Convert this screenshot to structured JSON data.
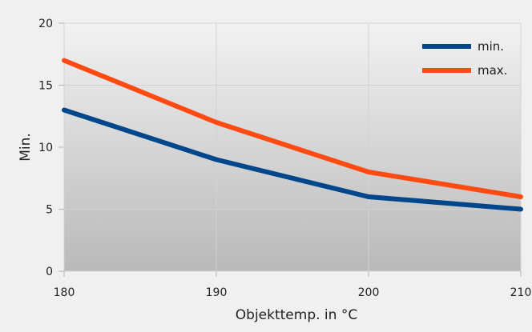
{
  "chart_data": {
    "type": "line",
    "title": "",
    "xlabel": "Objekttemp. in °C",
    "ylabel": "Min.",
    "x": [
      180,
      190,
      200,
      210
    ],
    "x_ticks": [
      "180",
      "190",
      "200",
      "210"
    ],
    "y_ticks": [
      "0",
      "5",
      "10",
      "15",
      "20"
    ],
    "ylim": [
      0,
      20
    ],
    "xlim": [
      180,
      210
    ],
    "grid": true,
    "legend": "top-right",
    "series": [
      {
        "name": "min.",
        "color": "#00468b",
        "values": [
          13,
          9,
          6,
          5
        ]
      },
      {
        "name": "max.",
        "color": "#ff4a12",
        "values": [
          17,
          12,
          8,
          6
        ]
      }
    ]
  }
}
